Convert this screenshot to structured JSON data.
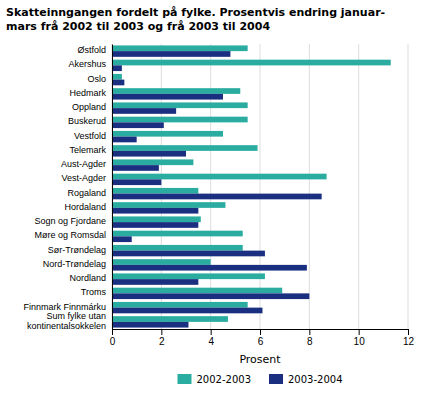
{
  "chart_data": {
    "type": "bar",
    "orientation": "horizontal",
    "title": "Skatteinngangen fordelt på fylke. Prosentvis endring januar-\nmars frå 2002 til 2003 og frå 2003 til 2004",
    "categories": [
      "Østfold",
      "Akershus",
      "Oslo",
      "Hedmark",
      "Oppland",
      "Buskerud",
      "Vestfold",
      "Telemark",
      "Aust-Agder",
      "Vest-Agder",
      "Rogaland",
      "Hordaland",
      "Sogn og Fjordane",
      "Møre og Romsdal",
      "Sør-Trøndelag",
      "Nord-Trøndelag",
      "Nordland",
      "Troms",
      "Finnmark Finnmárku",
      "Sum fylke utan\nkontinentalsokkelen"
    ],
    "series": [
      {
        "name": "2002-2003",
        "color": "#2aada0",
        "values": [
          5.5,
          11.3,
          0.4,
          5.2,
          5.5,
          5.5,
          4.5,
          5.9,
          3.3,
          8.7,
          3.5,
          4.6,
          3.6,
          5.3,
          5.3,
          4.0,
          6.2,
          6.9,
          5.5,
          4.7
        ]
      },
      {
        "name": "2003-2004",
        "color": "#1a2f80",
        "values": [
          4.8,
          0.4,
          0.5,
          4.5,
          2.6,
          2.1,
          1.0,
          3.0,
          1.9,
          2.0,
          8.5,
          3.5,
          3.5,
          0.8,
          6.2,
          7.9,
          3.5,
          8.0,
          6.1,
          3.1
        ]
      }
    ],
    "xlabel": "Prosent",
    "xlim": [
      0,
      12
    ],
    "xticks": [
      0,
      2,
      4,
      6,
      8,
      10,
      12
    ],
    "grid": true,
    "legend": "bottom"
  }
}
